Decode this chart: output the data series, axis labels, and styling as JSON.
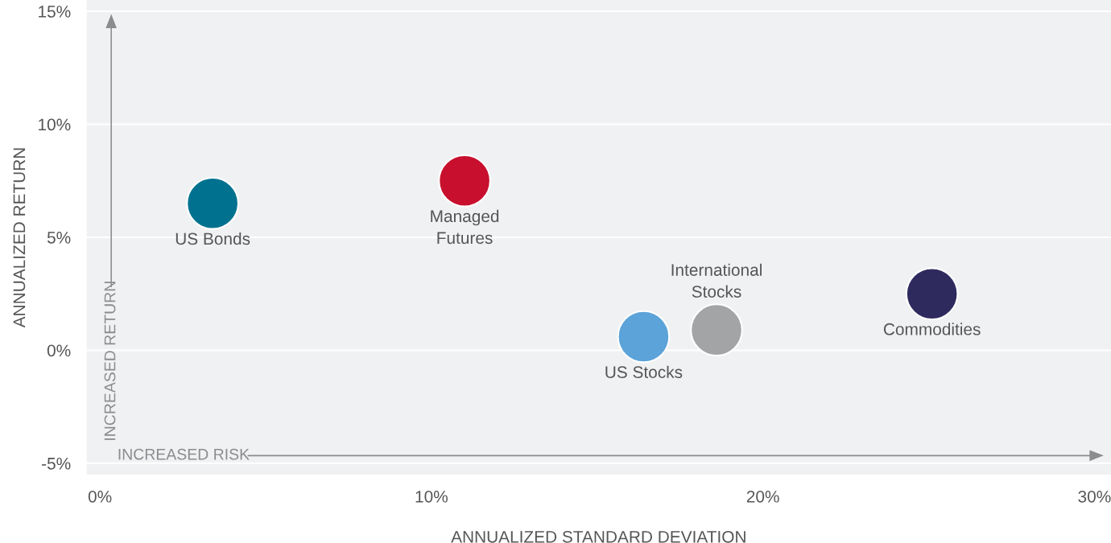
{
  "chart_data": {
    "type": "bubble",
    "xlabel": "ANNUALIZED STANDARD DEVIATION",
    "ylabel": "ANNUALIZED RETURN",
    "series": [
      {
        "name": "US Bonds",
        "color": "#00728f",
        "x": [
          3.4
        ],
        "values": [
          6.5
        ]
      },
      {
        "name": "Managed Futures",
        "color": "#c8102e",
        "x": [
          11.0
        ],
        "values": [
          7.5
        ]
      },
      {
        "name": "US Stocks",
        "color": "#5ba3d9",
        "x": [
          16.4
        ],
        "values": [
          0.6
        ]
      },
      {
        "name": "International Stocks",
        "color": "#a2a4a6",
        "x": [
          18.6
        ],
        "values": [
          0.9
        ]
      },
      {
        "name": "Commodities",
        "color": "#2f2a5e",
        "x": [
          25.1
        ],
        "values": [
          2.5
        ]
      }
    ],
    "xlim": [
      -0.4,
      30.5
    ],
    "ylim": [
      -5.5,
      15.5
    ],
    "xticks": [
      {
        "value": 0,
        "label": "0%"
      },
      {
        "value": 10,
        "label": "10%"
      },
      {
        "value": 20,
        "label": "20%"
      },
      {
        "value": 30,
        "label": "30%"
      }
    ],
    "yticks": [
      {
        "value": -5,
        "label": "-5%"
      },
      {
        "value": 0,
        "label": "0%"
      },
      {
        "value": 5,
        "label": "5%"
      },
      {
        "value": 10,
        "label": "10%"
      },
      {
        "value": 15,
        "label": "15%"
      }
    ],
    "grid": "y",
    "annotations": [
      "INCREASED RISK",
      "INCREASED RETURN"
    ]
  }
}
